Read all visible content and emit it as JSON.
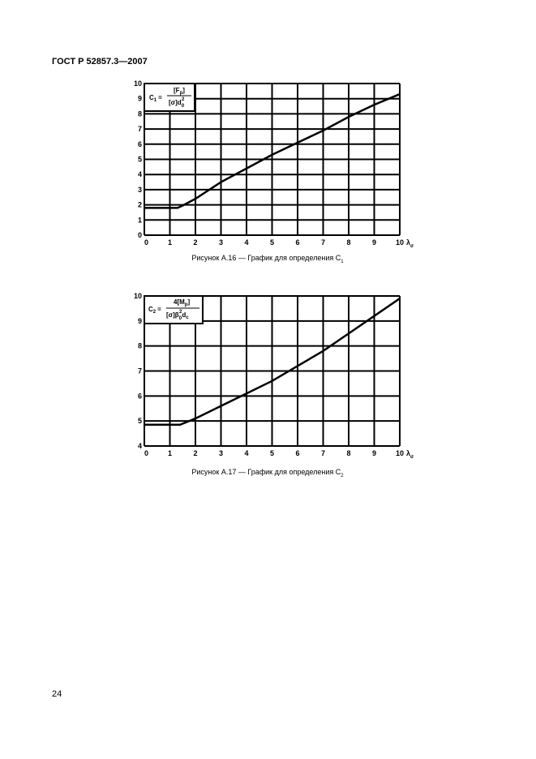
{
  "header": {
    "title": "ГОСТ Р 52857.3—2007"
  },
  "chart_data": [
    {
      "type": "line",
      "x_label": "λ",
      "x_label_sub": "σ",
      "formula": {
        "lhs": "C",
        "lhs_sub": "1",
        "eq": "=",
        "num": "[F",
        "num_sub": "p",
        "num_end": "]",
        "den": "[σ]d",
        "den_sub": "0",
        "den_sup": "2"
      },
      "caption": "Рисунок А.16 — График для определения C",
      "caption_sub": "1",
      "x": [
        0,
        1.3,
        1.5,
        2,
        3,
        4,
        5,
        6,
        7,
        8,
        9,
        10
      ],
      "values": [
        1.8,
        1.8,
        1.95,
        2.4,
        3.5,
        4.4,
        5.3,
        6.1,
        6.9,
        7.8,
        8.6,
        9.3
      ],
      "color": "#000000",
      "xlim": [
        0,
        10
      ],
      "xticks": [
        0,
        1,
        2,
        3,
        4,
        5,
        6,
        7,
        8,
        9,
        10
      ],
      "ylim": [
        0,
        10
      ],
      "yticks": [
        0,
        1,
        2,
        3,
        4,
        5,
        6,
        7,
        8,
        9,
        10
      ],
      "grid": true
    },
    {
      "type": "line",
      "x_label": "λ",
      "x_label_sub": "σ",
      "formula": {
        "lhs": "C",
        "lhs_sub": "2",
        "eq": "=",
        "num": "4[M",
        "num_sub": "p",
        "num_end": "]",
        "den": "[σ]β",
        "den_sub": "0",
        "den_sup": "2",
        "den_end": "d",
        "den_end_sub": "c"
      },
      "caption": "Рисунок А.17 — График для определения C",
      "caption_sub": "2",
      "x": [
        0,
        1.4,
        2,
        3,
        4,
        5,
        6,
        7,
        8,
        9,
        10
      ],
      "values": [
        4.85,
        4.85,
        5.1,
        5.6,
        6.1,
        6.6,
        7.2,
        7.8,
        8.5,
        9.2,
        9.9
      ],
      "color": "#000000",
      "xlim": [
        0,
        10
      ],
      "xticks": [
        0,
        1,
        2,
        3,
        4,
        5,
        6,
        7,
        8,
        9,
        10
      ],
      "ylim": [
        4,
        10
      ],
      "yticks": [
        4,
        5,
        6,
        7,
        8,
        9,
        10
      ],
      "grid": true
    }
  ],
  "page_number": "24"
}
